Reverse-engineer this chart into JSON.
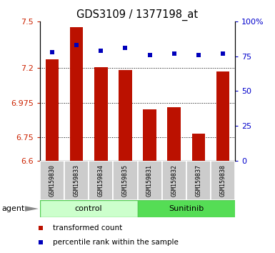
{
  "title": "GDS3109 / 1377198_at",
  "samples": [
    "GSM159830",
    "GSM159833",
    "GSM159834",
    "GSM159835",
    "GSM159831",
    "GSM159832",
    "GSM159837",
    "GSM159838"
  ],
  "red_values": [
    7.255,
    7.465,
    7.205,
    7.185,
    6.93,
    6.945,
    6.775,
    7.175
  ],
  "blue_values": [
    78,
    83,
    79,
    81,
    76,
    77,
    76,
    77
  ],
  "groups": [
    {
      "label": "control",
      "span": [
        0,
        4
      ],
      "color": "#ccffcc",
      "edge_color": "#55cc55"
    },
    {
      "label": "Sunitinib",
      "span": [
        4,
        8
      ],
      "color": "#55dd55",
      "edge_color": "#55cc55"
    }
  ],
  "ylim_left": [
    6.6,
    7.5
  ],
  "ylim_right": [
    0,
    100
  ],
  "yticks_left": [
    6.6,
    6.75,
    6.975,
    7.2,
    7.5
  ],
  "ytick_labels_left": [
    "6.6",
    "6.75",
    "6.975",
    "7.2",
    "7.5"
  ],
  "yticks_right": [
    0,
    25,
    50,
    75,
    100
  ],
  "ytick_labels_right": [
    "0",
    "25",
    "50",
    "75",
    "100%"
  ],
  "bar_color": "#bb1100",
  "dot_color": "#0000bb",
  "legend_items": [
    {
      "color": "#bb1100",
      "label": "transformed count"
    },
    {
      "color": "#0000bb",
      "label": "percentile rank within the sample"
    }
  ],
  "agent_label": "agent",
  "sample_bg": "#cccccc",
  "grid_yticks": [
    6.75,
    6.975,
    7.2
  ]
}
